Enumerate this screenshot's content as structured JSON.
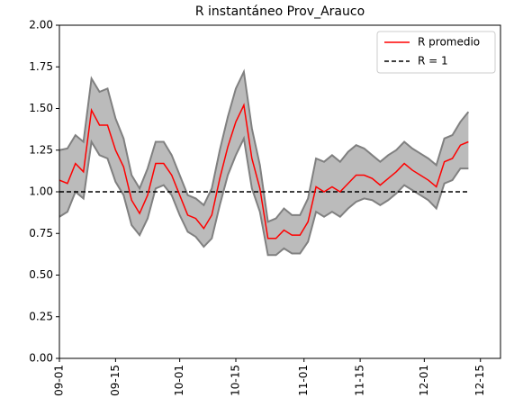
{
  "chart_data": {
    "type": "line",
    "title": "R instantáneo Prov_Arauco",
    "x": [
      "09-01",
      "09-03",
      "09-05",
      "09-07",
      "09-09",
      "09-11",
      "09-13",
      "09-15",
      "09-17",
      "09-19",
      "09-21",
      "09-23",
      "09-25",
      "09-27",
      "09-29",
      "10-01",
      "10-03",
      "10-05",
      "10-07",
      "10-09",
      "10-11",
      "10-13",
      "10-15",
      "10-17",
      "10-19",
      "10-21",
      "10-23",
      "10-25",
      "10-27",
      "10-29",
      "10-31",
      "11-02",
      "11-04",
      "11-06",
      "11-08",
      "11-10",
      "11-12",
      "11-14",
      "11-16",
      "11-18",
      "11-20",
      "11-22",
      "11-24",
      "11-26",
      "11-28",
      "11-30",
      "12-02",
      "12-04",
      "12-06",
      "12-08",
      "12-10",
      "12-12"
    ],
    "series": [
      {
        "name": "R promedio",
        "color": "#ff0000",
        "values": [
          1.07,
          1.05,
          1.17,
          1.12,
          1.49,
          1.4,
          1.4,
          1.25,
          1.15,
          0.95,
          0.87,
          0.98,
          1.17,
          1.17,
          1.1,
          0.98,
          0.86,
          0.84,
          0.78,
          0.86,
          1.08,
          1.27,
          1.42,
          1.52,
          1.2,
          1.02,
          0.72,
          0.72,
          0.77,
          0.74,
          0.74,
          0.82,
          1.03,
          1.0,
          1.03,
          1.0,
          1.05,
          1.1,
          1.1,
          1.08,
          1.04,
          1.08,
          1.12,
          1.17,
          1.13,
          1.1,
          1.07,
          1.03,
          1.18,
          1.2,
          1.28,
          1.3
        ]
      }
    ],
    "band": {
      "color": "#bbbbbb",
      "edge_color": "#808080",
      "upper": [
        1.25,
        1.26,
        1.34,
        1.3,
        1.68,
        1.6,
        1.62,
        1.44,
        1.32,
        1.1,
        1.02,
        1.14,
        1.3,
        1.3,
        1.22,
        1.1,
        0.98,
        0.96,
        0.92,
        1.02,
        1.25,
        1.45,
        1.62,
        1.72,
        1.38,
        1.16,
        0.82,
        0.84,
        0.9,
        0.86,
        0.86,
        0.96,
        1.2,
        1.18,
        1.22,
        1.18,
        1.24,
        1.28,
        1.26,
        1.22,
        1.18,
        1.22,
        1.25,
        1.3,
        1.26,
        1.23,
        1.2,
        1.16,
        1.32,
        1.34,
        1.42,
        1.48
      ],
      "lower": [
        0.85,
        0.88,
        1.0,
        0.96,
        1.3,
        1.22,
        1.2,
        1.06,
        0.98,
        0.8,
        0.74,
        0.84,
        1.02,
        1.04,
        0.98,
        0.86,
        0.76,
        0.73,
        0.67,
        0.72,
        0.92,
        1.1,
        1.22,
        1.32,
        1.02,
        0.88,
        0.62,
        0.62,
        0.66,
        0.63,
        0.63,
        0.7,
        0.88,
        0.85,
        0.88,
        0.85,
        0.9,
        0.94,
        0.96,
        0.95,
        0.92,
        0.95,
        0.99,
        1.04,
        1.01,
        0.98,
        0.95,
        0.9,
        1.05,
        1.07,
        1.14,
        1.14
      ]
    },
    "hline": {
      "name": "R = 1",
      "value": 1,
      "color": "#000000"
    },
    "xlim": [
      "09-01",
      "12-20"
    ],
    "xticks": [
      "09-01",
      "09-15",
      "10-01",
      "10-15",
      "11-01",
      "11-15",
      "12-01",
      "12-15"
    ],
    "ylim": [
      0,
      2
    ],
    "yticks": [
      {
        "value": 0,
        "label": "0.00"
      },
      {
        "value": 0.25,
        "label": "0.25"
      },
      {
        "value": 0.5,
        "label": "0.50"
      },
      {
        "value": 0.75,
        "label": "0.75"
      },
      {
        "value": 1,
        "label": "1.00"
      },
      {
        "value": 1.25,
        "label": "1.25"
      },
      {
        "value": 1.5,
        "label": "1.50"
      },
      {
        "value": 1.75,
        "label": "1.75"
      },
      {
        "value": 2,
        "label": "2.00"
      }
    ],
    "legend": "upper right"
  }
}
